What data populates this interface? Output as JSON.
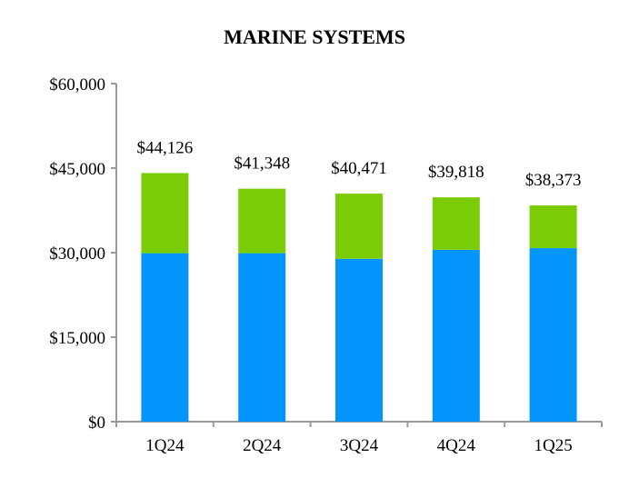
{
  "chart_data": {
    "type": "bar",
    "stacked": true,
    "title": "MARINE SYSTEMS",
    "xlabel": "",
    "ylabel": "",
    "categories": [
      "1Q24",
      "2Q24",
      "3Q24",
      "4Q24",
      "1Q25"
    ],
    "totals": [
      "$44,126",
      "$41,348",
      "$40,471",
      "$39,818",
      "$38,373"
    ],
    "total_values": [
      44126,
      41348,
      40471,
      39818,
      38373
    ],
    "series": [
      {
        "values": [
          29900,
          29900,
          28900,
          30500,
          30800
        ],
        "color": "#0394FC"
      },
      {
        "values": [
          14226,
          11448,
          11571,
          9318,
          7573
        ],
        "color": "#7ACC07"
      }
    ],
    "ylim": [
      0,
      60000
    ],
    "yticks": [
      0,
      15000,
      30000,
      45000,
      60000
    ],
    "ytick_labels": [
      "$0",
      "$15,000",
      "$30,000",
      "$45,000",
      "$60,000"
    ],
    "grid": false,
    "legend": "none"
  }
}
